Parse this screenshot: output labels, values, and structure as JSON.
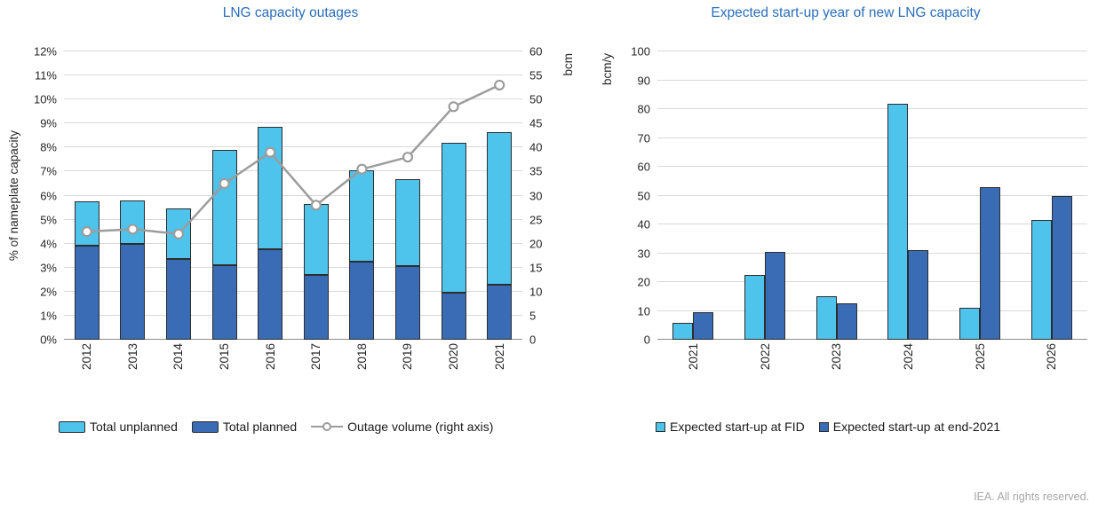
{
  "footer": {
    "credit": "IEA. All rights reserved."
  },
  "colors": {
    "light_blue": "#4ec3eb",
    "dark_blue": "#3a6bb5",
    "line_gray": "#9c9c9c",
    "title_blue": "#2a6ebb",
    "gridline": "#d9d9d9"
  },
  "chart_data": [
    {
      "type": "bar",
      "subtype": "stacked-with-line",
      "title": "LNG capacity outages",
      "categories": [
        "2012",
        "2013",
        "2014",
        "2015",
        "2016",
        "2017",
        "2018",
        "2019",
        "2020",
        "2021"
      ],
      "series": [
        {
          "name": "Total unplanned",
          "type": "bar",
          "stack_position": "top",
          "color": "light_blue",
          "axis": "left",
          "values": [
            1.85,
            1.8,
            2.1,
            4.8,
            5.1,
            2.95,
            3.8,
            3.65,
            6.25,
            6.35
          ]
        },
        {
          "name": "Total planned",
          "type": "bar",
          "stack_position": "bottom",
          "color": "dark_blue",
          "axis": "left",
          "values": [
            3.9,
            4.0,
            3.35,
            3.1,
            3.75,
            2.7,
            3.25,
            3.05,
            1.95,
            2.3
          ]
        },
        {
          "name": "Outage volume (right axis)",
          "type": "line",
          "color": "line_gray",
          "axis": "right",
          "values": [
            22.5,
            23,
            22,
            32.5,
            39,
            28,
            35.5,
            38,
            48.5,
            53
          ]
        }
      ],
      "ylabel_left": "% of nameplate capacity",
      "ylabel_right": "bcm",
      "ylim_left": [
        0,
        12
      ],
      "ytick_step_left": 1,
      "ytick_format_left": "percent",
      "ylim_right": [
        0,
        60
      ],
      "ytick_step_right": 5,
      "grid": true,
      "legend_position": "bottom",
      "legend": [
        {
          "label": "Total unplanned",
          "swatch": "bar",
          "color": "light_blue"
        },
        {
          "label": "Total planned",
          "swatch": "bar",
          "color": "dark_blue"
        },
        {
          "label": "Outage volume (right axis)",
          "swatch": "line",
          "color": "line_gray"
        }
      ]
    },
    {
      "type": "bar",
      "subtype": "grouped",
      "title": "Expected start-up year of new LNG capacity",
      "categories": [
        "2021",
        "2022",
        "2023",
        "2024",
        "2025",
        "2026"
      ],
      "series": [
        {
          "name": "Expected start-up at FID",
          "color": "light_blue",
          "values": [
            6,
            22.5,
            15,
            82,
            11,
            41.5
          ]
        },
        {
          "name": "Expected start-up at end-2021",
          "color": "dark_blue",
          "values": [
            9.5,
            30.5,
            12.5,
            31,
            53,
            50
          ]
        }
      ],
      "ylabel": "bcm/y",
      "ylim": [
        0,
        100
      ],
      "ytick_step": 10,
      "grid": true,
      "legend_position": "bottom",
      "legend": [
        {
          "label": "Expected start-up at FID",
          "swatch": "square",
          "color": "light_blue"
        },
        {
          "label": "Expected start-up at end-2021",
          "swatch": "square",
          "color": "dark_blue"
        }
      ]
    }
  ]
}
